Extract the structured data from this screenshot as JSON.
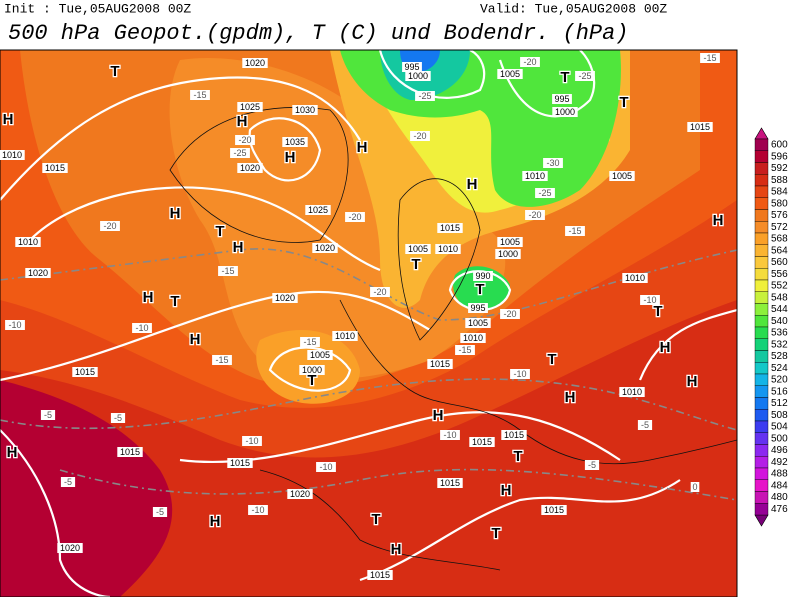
{
  "header": {
    "init": "Init : Tue,05AUG2008 00Z",
    "valid": "Valid: Tue,05AUG2008 00Z",
    "title": "500 hPa Geopot.(gpdm), T (C) und Bodendr. (hPa)"
  },
  "colorbar": [
    {
      "value": 600,
      "color": "#a0004f"
    },
    {
      "value": 596,
      "color": "#b40032"
    },
    {
      "value": 592,
      "color": "#c81e1e"
    },
    {
      "value": 588,
      "color": "#d72d14"
    },
    {
      "value": 584,
      "color": "#e64614"
    },
    {
      "value": 580,
      "color": "#f05a14"
    },
    {
      "value": 576,
      "color": "#f0781e"
    },
    {
      "value": 572,
      "color": "#f58c28"
    },
    {
      "value": 568,
      "color": "#faa028"
    },
    {
      "value": 564,
      "color": "#fab432"
    },
    {
      "value": 560,
      "color": "#fac83c"
    },
    {
      "value": 556,
      "color": "#f5dc3c"
    },
    {
      "value": 552,
      "color": "#f0f03c"
    },
    {
      "value": 548,
      "color": "#c8f03c"
    },
    {
      "value": 544,
      "color": "#8cf03c"
    },
    {
      "value": 540,
      "color": "#50e63c"
    },
    {
      "value": 536,
      "color": "#28dc50"
    },
    {
      "value": 532,
      "color": "#14d278"
    },
    {
      "value": 528,
      "color": "#14c8a0"
    },
    {
      "value": 524,
      "color": "#14c8c8"
    },
    {
      "value": 520,
      "color": "#14b4e6"
    },
    {
      "value": 516,
      "color": "#1496f0"
    },
    {
      "value": 512,
      "color": "#1478f0"
    },
    {
      "value": 508,
      "color": "#1e5af0"
    },
    {
      "value": 504,
      "color": "#3c3cf0"
    },
    {
      "value": 500,
      "color": "#6432f0"
    },
    {
      "value": 496,
      "color": "#8c28f0"
    },
    {
      "value": 492,
      "color": "#b41ee6"
    },
    {
      "value": 488,
      "color": "#d214dc"
    },
    {
      "value": 484,
      "color": "#e614c8"
    },
    {
      "value": 480,
      "color": "#c814b4"
    },
    {
      "value": 476,
      "color": "#960096"
    }
  ],
  "map": {
    "labels": [
      "T",
      "H",
      "1010",
      "1015",
      "1020",
      "1025",
      "1030",
      "1035",
      "H",
      "H",
      "1020",
      "H",
      "H",
      "T",
      "H",
      "1025",
      "1020",
      "1010",
      "1020",
      "H",
      "T",
      "1020",
      "H",
      "1015",
      "1010",
      "1005",
      "1000",
      "T",
      "995",
      "1000",
      "1005",
      "T",
      "995",
      "1000",
      "T",
      "1005",
      "1010",
      "H",
      "1015",
      "1005",
      "1010",
      "T",
      "1005",
      "1000",
      "990",
      "T",
      "995",
      "1005",
      "1010",
      "1015",
      "T",
      "H",
      "1010",
      "T",
      "1010",
      "H",
      "H",
      "1015",
      "1015",
      "T",
      "1015",
      "H",
      "T",
      "H",
      "T",
      "1015",
      "H",
      "1015",
      "1015",
      "1020",
      "H",
      "1020",
      "1015",
      "H",
      "1015",
      "H",
      "-15",
      "-20",
      "-25",
      "-20",
      "-15",
      "-10",
      "-15",
      "-20",
      "-20",
      "-15",
      "-10",
      "-10",
      "-5",
      "-5",
      "-5",
      "-5",
      "-10",
      "-20",
      "-25",
      "-25",
      "-20",
      "-30",
      "-25",
      "-20",
      "-15",
      "-20",
      "-15",
      "-10",
      "-10",
      "-5",
      "-5",
      "0",
      "-10",
      "-15",
      "-10"
    ]
  }
}
